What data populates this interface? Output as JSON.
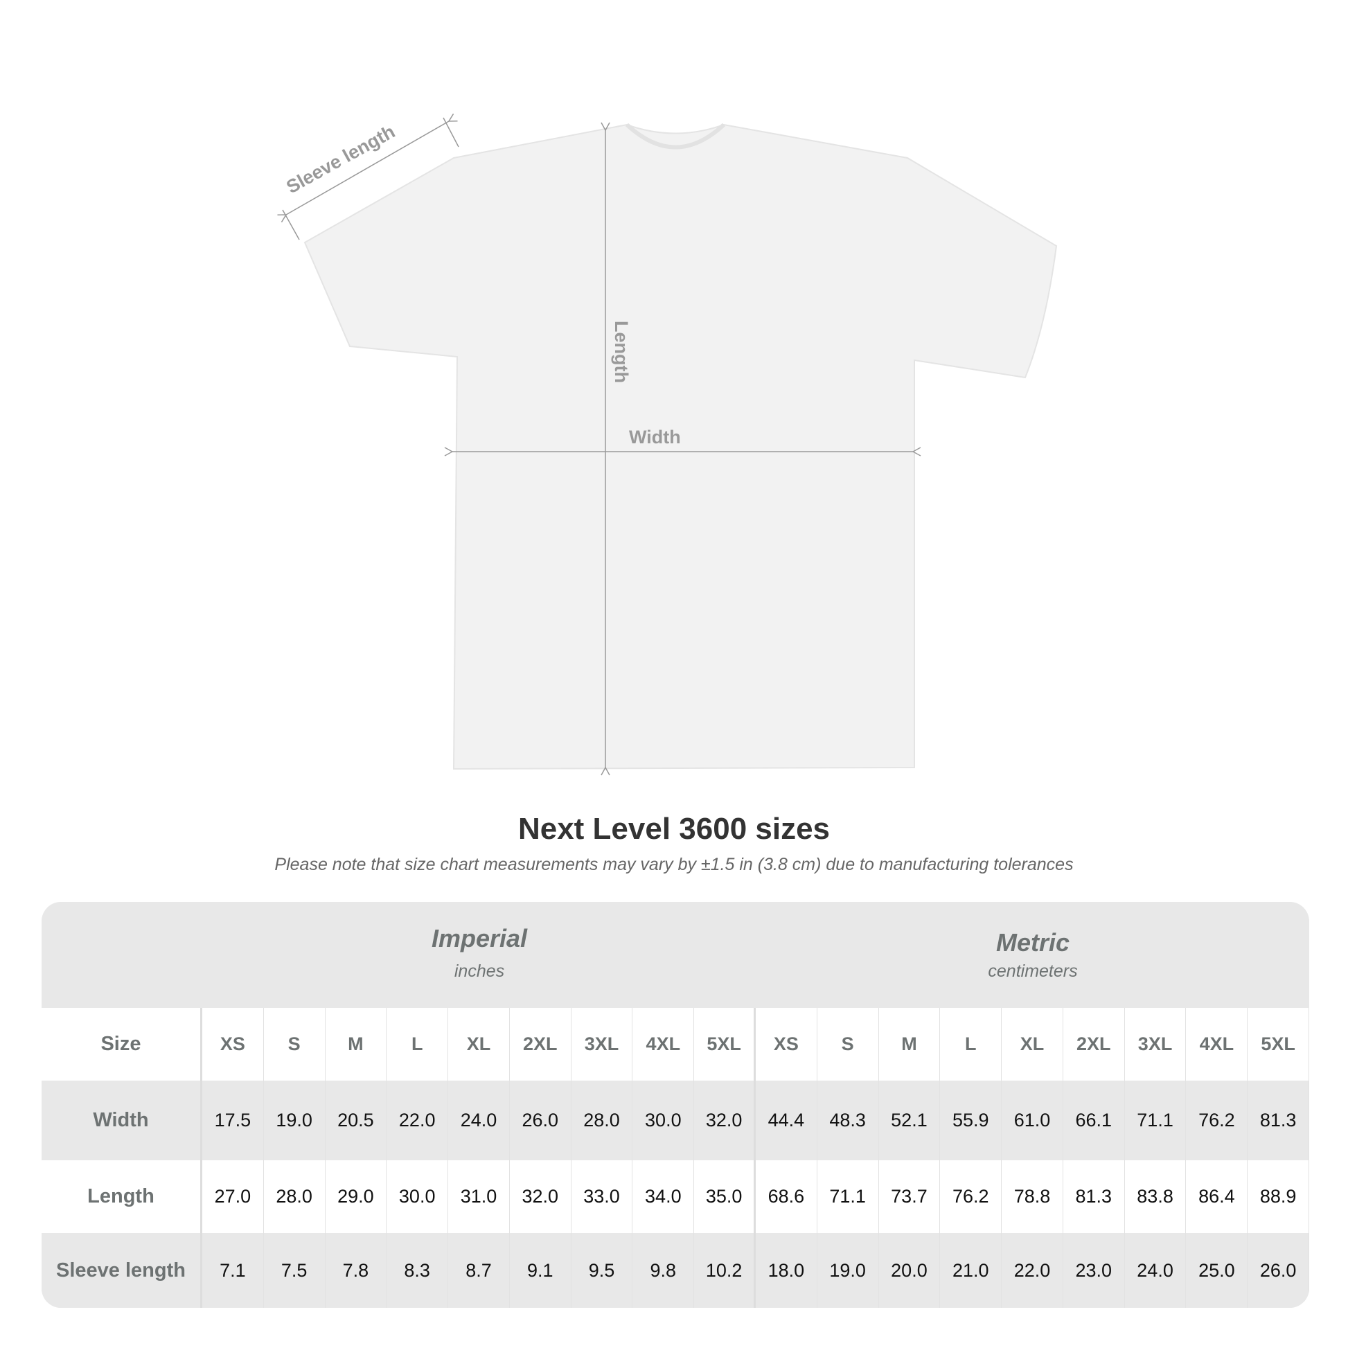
{
  "diagram": {
    "sleeve_label": "Sleeve length",
    "length_label": "Length",
    "width_label": "Width"
  },
  "title": "Next Level 3600 sizes",
  "note": "Please note that size chart measurements may vary by ±1.5 in (3.8 cm) due to manufacturing tolerances",
  "table": {
    "imperial": {
      "name": "Imperial",
      "unit": "inches"
    },
    "metric": {
      "name": "Metric",
      "unit": "centimeters"
    },
    "size_label": "Size",
    "sizes": [
      "XS",
      "S",
      "M",
      "L",
      "XL",
      "2XL",
      "3XL",
      "4XL",
      "5XL"
    ],
    "rows": [
      {
        "label": "Width",
        "imperial": [
          "17.5",
          "19.0",
          "20.5",
          "22.0",
          "24.0",
          "26.0",
          "28.0",
          "30.0",
          "32.0"
        ],
        "metric": [
          "44.4",
          "48.3",
          "52.1",
          "55.9",
          "61.0",
          "66.1",
          "71.1",
          "76.2",
          "81.3"
        ]
      },
      {
        "label": "Length",
        "imperial": [
          "27.0",
          "28.0",
          "29.0",
          "30.0",
          "31.0",
          "32.0",
          "33.0",
          "34.0",
          "35.0"
        ],
        "metric": [
          "68.6",
          "71.1",
          "73.7",
          "76.2",
          "78.8",
          "81.3",
          "83.8",
          "86.4",
          "88.9"
        ]
      },
      {
        "label": "Sleeve length",
        "imperial": [
          "7.1",
          "7.5",
          "7.8",
          "8.3",
          "8.7",
          "9.1",
          "9.5",
          "9.8",
          "10.2"
        ],
        "metric": [
          "18.0",
          "19.0",
          "20.0",
          "21.0",
          "22.0",
          "23.0",
          "24.0",
          "25.0",
          "26.0"
        ]
      }
    ]
  }
}
